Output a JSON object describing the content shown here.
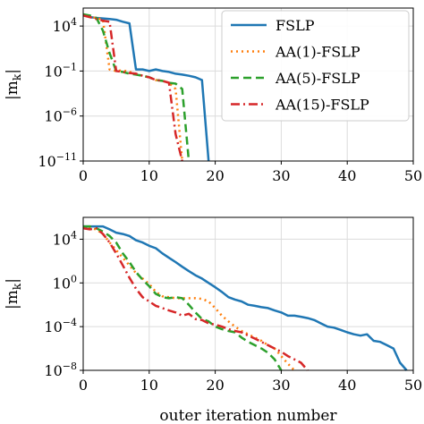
{
  "chart_data": [
    {
      "type": "line",
      "yscale": "log",
      "xlim": [
        0,
        50
      ],
      "ylim": [
        1e-11,
        1000000.0
      ],
      "xticks": [
        "0",
        "10",
        "20",
        "30",
        "40",
        "50"
      ],
      "yticks": [
        {
          "label": "10",
          "sup": "4",
          "value": 10000.0
        },
        {
          "label": "10",
          "sup": "−1",
          "value": 0.1
        },
        {
          "label": "10",
          "sup": "−6",
          "value": 1e-06
        },
        {
          "label": "10",
          "sup": "−11",
          "value": 1e-11
        }
      ],
      "ylabel": "|m_k|",
      "xlabel": "",
      "grid": true,
      "legend": {
        "placement": "top-right",
        "entries": [
          "FSLP",
          "AA(1)-FSLP",
          "AA(5)-FSLP",
          "AA(15)-FSLP"
        ]
      },
      "series": [
        {
          "name": "FSLP",
          "color": "#1f77b4",
          "dash": "solid",
          "x": [
            0,
            1,
            2,
            3,
            4,
            5,
            6,
            7,
            8,
            9,
            10,
            11,
            12,
            13,
            14,
            15,
            16,
            17,
            18,
            19
          ],
          "y": [
            200000,
            100000,
            80000,
            70000,
            60000,
            50000,
            30000,
            20000,
            0.15,
            0.15,
            0.1,
            0.15,
            0.1,
            0.08,
            0.05,
            0.04,
            0.03,
            0.02,
            0.01,
            1e-11
          ]
        },
        {
          "name": "AA(1)-FSLP",
          "color": "#ff7f0e",
          "dash": "dotted",
          "x": [
            0,
            1,
            2,
            3,
            4,
            5,
            6,
            7,
            8,
            9,
            10,
            11,
            12,
            13,
            14,
            15
          ],
          "y": [
            200000,
            100000,
            80000,
            50000,
            0.15,
            0.1,
            0.12,
            0.08,
            0.05,
            0.03,
            0.02,
            0.01,
            0.008,
            0.005,
            0.001,
            1e-11
          ]
        },
        {
          "name": "AA(5)-FSLP",
          "color": "#2ca02c",
          "dash": "dashed",
          "x": [
            0,
            1,
            2,
            3,
            4,
            5,
            6,
            7,
            8,
            9,
            10,
            11,
            12,
            13,
            14,
            15,
            16
          ],
          "y": [
            200000,
            150000,
            80000,
            3000,
            10,
            0.1,
            0.08,
            0.05,
            0.04,
            0.03,
            0.02,
            0.01,
            0.008,
            0.005,
            0.004,
            0.001,
            1e-11
          ]
        },
        {
          "name": "AA(15)-FSLP",
          "color": "#d62728",
          "dash": "dashdot",
          "x": [
            0,
            1,
            2,
            3,
            4,
            5,
            6,
            7,
            8,
            9,
            10,
            11,
            12,
            13,
            14,
            15
          ],
          "y": [
            150000,
            100000,
            60000,
            40000,
            30000,
            0.1,
            0.08,
            0.06,
            0.05,
            0.03,
            0.02,
            0.01,
            0.008,
            0.005,
            1e-08,
            1e-11
          ]
        }
      ]
    },
    {
      "type": "line",
      "yscale": "log",
      "xlim": [
        0,
        50
      ],
      "ylim": [
        1e-08,
        1000000.0
      ],
      "xticks": [
        "0",
        "10",
        "20",
        "30",
        "40",
        "50"
      ],
      "yticks": [
        {
          "label": "10",
          "sup": "4",
          "value": 10000.0
        },
        {
          "label": "10",
          "sup": "0",
          "value": 1
        },
        {
          "label": "10",
          "sup": "−4",
          "value": 0.0001
        },
        {
          "label": "10",
          "sup": "−8",
          "value": 1e-08
        }
      ],
      "ylabel": "|m_k|",
      "xlabel": "outer iteration number",
      "grid": true,
      "series": [
        {
          "name": "FSLP",
          "color": "#1f77b4",
          "dash": "solid",
          "x": [
            0,
            1,
            2,
            3,
            4,
            5,
            6,
            7,
            8,
            9,
            10,
            11,
            12,
            13,
            14,
            15,
            16,
            17,
            18,
            19,
            20,
            21,
            22,
            23,
            24,
            25,
            26,
            27,
            28,
            29,
            30,
            31,
            32,
            33,
            34,
            35,
            36,
            37,
            38,
            39,
            40,
            41,
            42,
            43,
            44,
            45,
            46,
            47,
            48,
            49
          ],
          "y": [
            150000,
            150000,
            150000,
            150000,
            80000,
            40000,
            30000,
            20000,
            8000,
            5000,
            2500,
            1500,
            500,
            200,
            80,
            30,
            12,
            5,
            2.5,
            1,
            0.4,
            0.15,
            0.05,
            0.03,
            0.02,
            0.01,
            0.008,
            0.006,
            0.005,
            0.003,
            0.002,
            0.001,
            0.001,
            0.0008,
            0.0006,
            0.0004,
            0.0002,
            0.0001,
            8e-05,
            5e-05,
            3e-05,
            2e-05,
            1.5e-05,
            2e-05,
            5e-06,
            4e-06,
            2e-06,
            1e-06,
            5e-08,
            1e-08
          ]
        },
        {
          "name": "AA(1)-FSLP",
          "color": "#ff7f0e",
          "dash": "dotted",
          "x": [
            0,
            1,
            2,
            3,
            4,
            5,
            6,
            7,
            8,
            9,
            10,
            11,
            12,
            13,
            14,
            15,
            16,
            17,
            18,
            19,
            20,
            21,
            22,
            23,
            24,
            25,
            26,
            27,
            28,
            29,
            30,
            31,
            32
          ],
          "y": [
            100000,
            100000,
            80000,
            30000,
            5000,
            1000,
            200,
            40,
            8,
            2.5,
            0.8,
            0.15,
            0.06,
            0.05,
            0.04,
            0.04,
            0.04,
            0.04,
            0.035,
            0.02,
            0.005,
            0.001,
            0.0003,
            0.0001,
            4e-05,
            2e-05,
            1e-05,
            5e-06,
            2e-06,
            1e-06,
            2e-07,
            4e-08,
            1e-08
          ]
        },
        {
          "name": "AA(5)-FSLP",
          "color": "#2ca02c",
          "dash": "dashed",
          "x": [
            0,
            1,
            2,
            3,
            4,
            5,
            6,
            7,
            8,
            9,
            10,
            11,
            12,
            13,
            14,
            15,
            16,
            17,
            18,
            19,
            20,
            21,
            22,
            23,
            24,
            25,
            26,
            27,
            28,
            29,
            30
          ],
          "y": [
            150000,
            150000,
            100000,
            50000,
            20000,
            5000,
            500,
            80,
            10,
            2,
            0.5,
            0.1,
            0.05,
            0.04,
            0.05,
            0.04,
            0.01,
            0.002,
            0.0005,
            0.0003,
            0.0001,
            6e-05,
            4e-05,
            3e-05,
            1e-05,
            4e-06,
            2e-06,
            1e-06,
            4e-07,
            1e-07,
            1e-08
          ]
        },
        {
          "name": "AA(15)-FSLP",
          "color": "#d62728",
          "dash": "dashdot",
          "x": [
            0,
            1,
            2,
            3,
            4,
            5,
            6,
            7,
            8,
            9,
            10,
            11,
            12,
            13,
            14,
            15,
            16,
            17,
            18,
            19,
            20,
            21,
            22,
            23,
            24,
            25,
            26,
            27,
            28,
            29,
            30,
            31,
            32,
            33,
            34
          ],
          "y": [
            100000,
            80000,
            100000,
            30000,
            5000,
            500,
            40,
            3,
            0.3,
            0.05,
            0.02,
            0.008,
            0.005,
            0.003,
            0.002,
            0.001,
            0.0015,
            0.0005,
            0.0004,
            0.0002,
            0.00015,
            0.0001,
            6e-05,
            4e-05,
            3e-05,
            1.5e-05,
            8e-06,
            4e-06,
            2e-06,
            1e-06,
            5e-07,
            2e-07,
            1e-07,
            5e-08,
            1e-08
          ]
        }
      ]
    }
  ]
}
